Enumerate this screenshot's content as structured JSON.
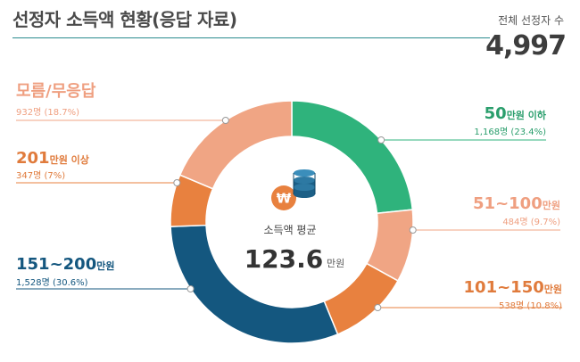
{
  "header": {
    "title": "선정자 소득액 현황(응답 자료)",
    "total_label": "전체 선정자 수",
    "total_value": "4,997"
  },
  "center": {
    "label": "소득액 평균",
    "value": "123.6",
    "unit": "만원",
    "icon": "won-coins-icon"
  },
  "chart_data": {
    "type": "donut",
    "total": 4997,
    "slices": [
      {
        "key": "le50",
        "label_num": "50",
        "label_unit": "만원 이하",
        "count": 1168,
        "percent": 23.4,
        "detail": "1,168명 (23.4%)",
        "color": "#2fb37c"
      },
      {
        "key": "51_100",
        "label_num": "51~100",
        "label_unit": "만원",
        "count": 484,
        "percent": 9.7,
        "detail": "484명 (9.7%)",
        "color": "#f0a584"
      },
      {
        "key": "101_150",
        "label_num": "101~150",
        "label_unit": "만원",
        "count": 538,
        "percent": 10.8,
        "detail": "538명 (10.8%)",
        "color": "#e8813f"
      },
      {
        "key": "151_200",
        "label_num": "151~200",
        "label_unit": "만원",
        "count": 1528,
        "percent": 30.6,
        "detail": "1,528명 (30.6%)",
        "color": "#14577f"
      },
      {
        "key": "ge201",
        "label_num": "201",
        "label_unit": "만원 이상",
        "count": 347,
        "percent": 7.0,
        "detail": "347명 (7%)",
        "color": "#e8813f"
      },
      {
        "key": "unknown",
        "label_num": "모름/무응답",
        "label_unit": "",
        "count": 932,
        "percent": 18.7,
        "detail": "932명 (18.7%)",
        "color": "#f0a584"
      }
    ]
  }
}
